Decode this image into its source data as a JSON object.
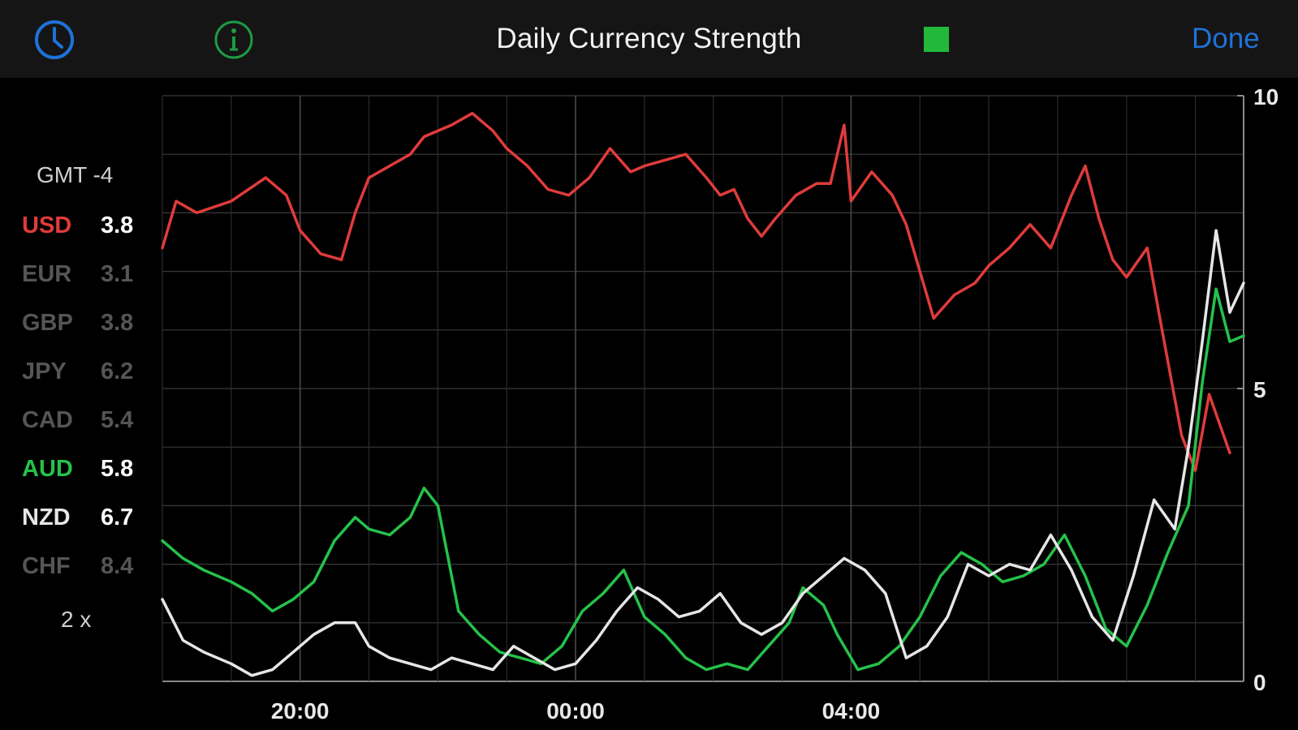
{
  "header": {
    "title": "Daily Currency Strength",
    "done_label": "Done",
    "indicator_color": "#22b83a",
    "clock_icon": "clock-icon",
    "info_icon": "info-icon"
  },
  "legend": {
    "timezone": "GMT -4",
    "zoom_label": "2 x",
    "items": [
      {
        "code": "USD",
        "value": "3.8",
        "color": "#e03b3b",
        "value_color": "#ffffff"
      },
      {
        "code": "EUR",
        "value": "3.1",
        "color": "#555555",
        "value_color": "#555555"
      },
      {
        "code": "GBP",
        "value": "3.8",
        "color": "#555555",
        "value_color": "#555555"
      },
      {
        "code": "JPY",
        "value": "6.2",
        "color": "#555555",
        "value_color": "#555555"
      },
      {
        "code": "CAD",
        "value": "5.4",
        "color": "#555555",
        "value_color": "#555555"
      },
      {
        "code": "AUD",
        "value": "5.8",
        "color": "#25c24a",
        "value_color": "#ffffff"
      },
      {
        "code": "NZD",
        "value": "6.7",
        "color": "#e6e6e6",
        "value_color": "#ffffff"
      },
      {
        "code": "CHF",
        "value": "8.4",
        "color": "#555555",
        "value_color": "#555555"
      }
    ]
  },
  "chart_data": {
    "type": "line",
    "title": "Daily Currency Strength",
    "xlabel": "",
    "ylabel": "",
    "x_ticks": [
      "20:00",
      "00:00",
      "04:00"
    ],
    "y_ticks": [
      "0",
      "5",
      "10"
    ],
    "ylim": [
      0,
      10
    ],
    "grid": true,
    "series": [
      {
        "name": "USD",
        "color": "#e03b3b",
        "points": [
          [
            18.0,
            7.4
          ],
          [
            18.2,
            8.2
          ],
          [
            18.5,
            8.0
          ],
          [
            19.0,
            8.2
          ],
          [
            19.5,
            8.6
          ],
          [
            19.8,
            8.3
          ],
          [
            20.0,
            7.7
          ],
          [
            20.3,
            7.3
          ],
          [
            20.6,
            7.2
          ],
          [
            20.8,
            8.0
          ],
          [
            21.0,
            8.6
          ],
          [
            21.3,
            8.8
          ],
          [
            21.6,
            9.0
          ],
          [
            21.8,
            9.3
          ],
          [
            22.2,
            9.5
          ],
          [
            22.5,
            9.7
          ],
          [
            22.8,
            9.4
          ],
          [
            23.0,
            9.1
          ],
          [
            23.3,
            8.8
          ],
          [
            23.6,
            8.4
          ],
          [
            23.9,
            8.3
          ],
          [
            24.2,
            8.6
          ],
          [
            24.5,
            9.1
          ],
          [
            24.8,
            8.7
          ],
          [
            25.0,
            8.8
          ],
          [
            25.3,
            8.9
          ],
          [
            25.6,
            9.0
          ],
          [
            25.9,
            8.6
          ],
          [
            26.1,
            8.3
          ],
          [
            26.3,
            8.4
          ],
          [
            26.5,
            7.9
          ],
          [
            26.7,
            7.6
          ],
          [
            26.9,
            7.9
          ],
          [
            27.2,
            8.3
          ],
          [
            27.5,
            8.5
          ],
          [
            27.7,
            8.5
          ],
          [
            27.9,
            9.5
          ],
          [
            28.0,
            8.2
          ],
          [
            28.3,
            8.7
          ],
          [
            28.6,
            8.3
          ],
          [
            28.8,
            7.8
          ],
          [
            29.0,
            7.0
          ],
          [
            29.2,
            6.2
          ],
          [
            29.5,
            6.6
          ],
          [
            29.8,
            6.8
          ],
          [
            30.0,
            7.1
          ],
          [
            30.3,
            7.4
          ],
          [
            30.6,
            7.8
          ],
          [
            30.9,
            7.4
          ],
          [
            31.2,
            8.3
          ],
          [
            31.4,
            8.8
          ],
          [
            31.6,
            7.9
          ],
          [
            31.8,
            7.2
          ],
          [
            32.0,
            6.9
          ],
          [
            32.3,
            7.4
          ],
          [
            32.5,
            6.1
          ],
          [
            32.8,
            4.2
          ],
          [
            33.0,
            3.6
          ],
          [
            33.2,
            4.9
          ],
          [
            33.5,
            3.9
          ]
        ]
      },
      {
        "name": "AUD",
        "color": "#25c24a",
        "points": [
          [
            18.0,
            2.4
          ],
          [
            18.3,
            2.1
          ],
          [
            18.6,
            1.9
          ],
          [
            19.0,
            1.7
          ],
          [
            19.3,
            1.5
          ],
          [
            19.6,
            1.2
          ],
          [
            19.9,
            1.4
          ],
          [
            20.2,
            1.7
          ],
          [
            20.5,
            2.4
          ],
          [
            20.8,
            2.8
          ],
          [
            21.0,
            2.6
          ],
          [
            21.3,
            2.5
          ],
          [
            21.6,
            2.8
          ],
          [
            21.8,
            3.3
          ],
          [
            22.0,
            3.0
          ],
          [
            22.3,
            1.2
          ],
          [
            22.6,
            0.8
          ],
          [
            22.9,
            0.5
          ],
          [
            23.2,
            0.4
          ],
          [
            23.5,
            0.3
          ],
          [
            23.8,
            0.6
          ],
          [
            24.1,
            1.2
          ],
          [
            24.4,
            1.5
          ],
          [
            24.7,
            1.9
          ],
          [
            25.0,
            1.1
          ],
          [
            25.3,
            0.8
          ],
          [
            25.6,
            0.4
          ],
          [
            25.9,
            0.2
          ],
          [
            26.2,
            0.3
          ],
          [
            26.5,
            0.2
          ],
          [
            26.8,
            0.6
          ],
          [
            27.1,
            1.0
          ],
          [
            27.3,
            1.6
          ],
          [
            27.6,
            1.3
          ],
          [
            27.8,
            0.8
          ],
          [
            28.1,
            0.2
          ],
          [
            28.4,
            0.3
          ],
          [
            28.7,
            0.6
          ],
          [
            29.0,
            1.1
          ],
          [
            29.3,
            1.8
          ],
          [
            29.6,
            2.2
          ],
          [
            29.9,
            2.0
          ],
          [
            30.2,
            1.7
          ],
          [
            30.5,
            1.8
          ],
          [
            30.8,
            2.0
          ],
          [
            31.1,
            2.5
          ],
          [
            31.4,
            1.8
          ],
          [
            31.7,
            0.9
          ],
          [
            32.0,
            0.6
          ],
          [
            32.3,
            1.3
          ],
          [
            32.6,
            2.2
          ],
          [
            32.9,
            3.0
          ],
          [
            33.1,
            5.1
          ],
          [
            33.3,
            6.7
          ],
          [
            33.5,
            5.8
          ],
          [
            33.7,
            5.9
          ]
        ]
      },
      {
        "name": "NZD",
        "color": "#e6e6e6",
        "points": [
          [
            18.0,
            1.4
          ],
          [
            18.3,
            0.7
          ],
          [
            18.6,
            0.5
          ],
          [
            19.0,
            0.3
          ],
          [
            19.3,
            0.1
          ],
          [
            19.6,
            0.2
          ],
          [
            19.9,
            0.5
          ],
          [
            20.2,
            0.8
          ],
          [
            20.5,
            1.0
          ],
          [
            20.8,
            1.0
          ],
          [
            21.0,
            0.6
          ],
          [
            21.3,
            0.4
          ],
          [
            21.6,
            0.3
          ],
          [
            21.9,
            0.2
          ],
          [
            22.2,
            0.4
          ],
          [
            22.5,
            0.3
          ],
          [
            22.8,
            0.2
          ],
          [
            23.1,
            0.6
          ],
          [
            23.4,
            0.4
          ],
          [
            23.7,
            0.2
          ],
          [
            24.0,
            0.3
          ],
          [
            24.3,
            0.7
          ],
          [
            24.6,
            1.2
          ],
          [
            24.9,
            1.6
          ],
          [
            25.2,
            1.4
          ],
          [
            25.5,
            1.1
          ],
          [
            25.8,
            1.2
          ],
          [
            26.1,
            1.5
          ],
          [
            26.4,
            1.0
          ],
          [
            26.7,
            0.8
          ],
          [
            27.0,
            1.0
          ],
          [
            27.3,
            1.5
          ],
          [
            27.6,
            1.8
          ],
          [
            27.9,
            2.1
          ],
          [
            28.2,
            1.9
          ],
          [
            28.5,
            1.5
          ],
          [
            28.8,
            0.4
          ],
          [
            29.1,
            0.6
          ],
          [
            29.4,
            1.1
          ],
          [
            29.7,
            2.0
          ],
          [
            30.0,
            1.8
          ],
          [
            30.3,
            2.0
          ],
          [
            30.6,
            1.9
          ],
          [
            30.9,
            2.5
          ],
          [
            31.2,
            1.9
          ],
          [
            31.5,
            1.1
          ],
          [
            31.8,
            0.7
          ],
          [
            32.1,
            1.8
          ],
          [
            32.4,
            3.1
          ],
          [
            32.7,
            2.6
          ],
          [
            32.9,
            4.0
          ],
          [
            33.1,
            5.8
          ],
          [
            33.3,
            7.7
          ],
          [
            33.5,
            6.3
          ],
          [
            33.7,
            6.8
          ]
        ]
      }
    ]
  }
}
